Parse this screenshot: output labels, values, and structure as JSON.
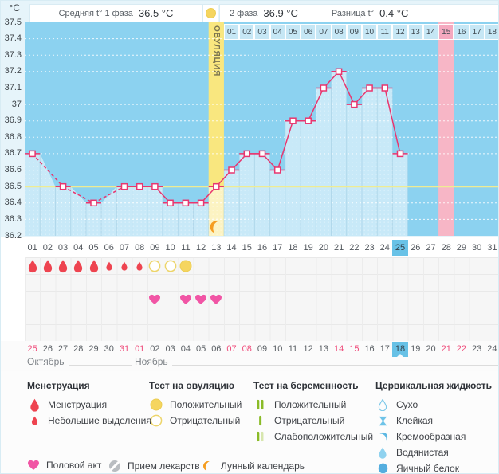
{
  "header": {
    "unit": "°C",
    "phase1_label": "Средняя t° 1 фаза",
    "phase1_value": "36.5 °C",
    "phase2_label": "2 фаза",
    "phase2_value": "36.9 °C",
    "diff_label": "Разница t°",
    "diff_value": "0.4 °C",
    "ovulation_header_icon": "ovulation-test-positive",
    "ovulation_label": "ОВУЛЯЦИЯ"
  },
  "chart_data": {
    "type": "line",
    "title": "Basal body temperature chart",
    "ylabel": "°C",
    "ylim": [
      36.2,
      37.5
    ],
    "ytick_labels": [
      "37.5",
      "37.4",
      "37.3",
      "37.2",
      "37.1",
      "37",
      "36.9",
      "36.8",
      "36.7",
      "36.6",
      "36.5",
      "36.4",
      "36.3",
      "36.2"
    ],
    "day_labels": [
      "01",
      "02",
      "03",
      "04",
      "05",
      "06",
      "07",
      "08",
      "09",
      "10",
      "11",
      "12",
      "13",
      "14",
      "15",
      "16",
      "17",
      "18",
      "19",
      "20",
      "21",
      "22",
      "23",
      "24",
      "25",
      "26",
      "27",
      "28",
      "29",
      "30",
      "31"
    ],
    "temps": [
      36.7,
      null,
      36.5,
      null,
      36.4,
      null,
      36.5,
      36.5,
      36.5,
      36.4,
      36.4,
      36.4,
      36.5,
      36.6,
      36.7,
      36.7,
      36.6,
      36.9,
      36.9,
      37.1,
      37.2,
      37.0,
      37.1,
      37.1,
      36.7,
      null,
      null,
      null,
      null,
      null,
      null
    ],
    "coverline": 36.5,
    "ovulation_day": 13,
    "expected_period_day": 28,
    "selected_day": "25",
    "phase2_days": {
      "start_cycle_day": 14,
      "labels": [
        "01",
        "02",
        "03",
        "04",
        "05",
        "06",
        "07",
        "08",
        "09",
        "10",
        "11",
        "12",
        "13",
        "14",
        "15",
        "16",
        "17",
        "18"
      ],
      "highlighted": "15"
    },
    "grid": "dotted-white",
    "colors": {
      "chart_bg": "#8CD2F0",
      "fill_under_curve": "rgba(255,255,255,0.52)",
      "line": "#E8366F",
      "coverline": "#EFEC93",
      "ovulation_column": "#F9E77F",
      "period_column": "#F7B6C6",
      "phase2_cell": "#C6E7F5",
      "phase2_cell_highlight": "#F5A9BF",
      "selected_day_bg": "#69C2E7"
    }
  },
  "symbols": {
    "menstruation_days": [
      1,
      2,
      3,
      4,
      5
    ],
    "spotting_days": [
      6,
      7,
      8
    ],
    "ovulation_test_negative_days": [
      9,
      10
    ],
    "ovulation_test_positive_days": [
      11
    ],
    "intercourse_days": [
      9,
      11,
      12,
      13
    ]
  },
  "calendar": {
    "dates": [
      {
        "label": "25",
        "red": true
      },
      {
        "label": "26"
      },
      {
        "label": "27"
      },
      {
        "label": "28"
      },
      {
        "label": "29"
      },
      {
        "label": "30"
      },
      {
        "label": "31",
        "red": true
      },
      {
        "label": "01",
        "red": true
      },
      {
        "label": "02"
      },
      {
        "label": "03"
      },
      {
        "label": "04"
      },
      {
        "label": "05"
      },
      {
        "label": "06"
      },
      {
        "label": "07",
        "red": true
      },
      {
        "label": "08",
        "red": true
      },
      {
        "label": "09"
      },
      {
        "label": "10"
      },
      {
        "label": "11"
      },
      {
        "label": "12"
      },
      {
        "label": "13"
      },
      {
        "label": "14",
        "red": true
      },
      {
        "label": "15",
        "red": true
      },
      {
        "label": "16"
      },
      {
        "label": "17"
      },
      {
        "label": "18",
        "today": true
      },
      {
        "label": "19"
      },
      {
        "label": "20"
      },
      {
        "label": "21",
        "red": true
      },
      {
        "label": "22",
        "red": true
      },
      {
        "label": "23"
      },
      {
        "label": "24"
      }
    ],
    "months": [
      {
        "label": "Октябрь"
      },
      {
        "label": "Ноябрь"
      }
    ],
    "today_date": "18"
  },
  "legend": {
    "sections": [
      {
        "title": "Менструация",
        "items": [
          {
            "icon": "menstruation-drop",
            "label": "Менструация"
          },
          {
            "icon": "spotting-drop",
            "label": "Небольшие выделения"
          }
        ]
      },
      {
        "title": "Тест на овуляцию",
        "items": [
          {
            "icon": "ovulation-test-positive",
            "label": "Положительный"
          },
          {
            "icon": "ovulation-test-negative",
            "label": "Отрицательный"
          }
        ]
      },
      {
        "title": "Тест на беременность",
        "items": [
          {
            "icon": "pregnancy-test-positive",
            "label": "Положительный"
          },
          {
            "icon": "pregnancy-test-negative",
            "label": "Отрицательный"
          },
          {
            "icon": "pregnancy-test-weak",
            "label": "Слабоположительный"
          }
        ]
      },
      {
        "title": "Цервикальная жидкость",
        "items": [
          {
            "icon": "fluid-dry",
            "label": "Сухо"
          },
          {
            "icon": "fluid-sticky",
            "label": "Клейкая"
          },
          {
            "icon": "fluid-creamy",
            "label": "Кремообразная"
          },
          {
            "icon": "fluid-watery",
            "label": "Водянистая"
          },
          {
            "icon": "fluid-eggwhite",
            "label": "Яичный белок"
          }
        ]
      }
    ],
    "footer_items": [
      {
        "icon": "intercourse-heart",
        "label": "Половой акт"
      },
      {
        "icon": "medication-pill",
        "label": "Прием лекарств"
      },
      {
        "icon": "lunar-moon",
        "label": "Лунный календарь"
      }
    ],
    "icon_colors": {
      "drop_red": "#EE4450",
      "test_yellow": "#F5D55F",
      "heart_pink": "#F155A5",
      "bar_green": "#8ABB27",
      "bar_pale_green": "#D7E6AE",
      "fluid_blue": "#6EC3E8",
      "pill_gray": "#B9BDC1",
      "moon_orange": "#F59D20"
    }
  }
}
